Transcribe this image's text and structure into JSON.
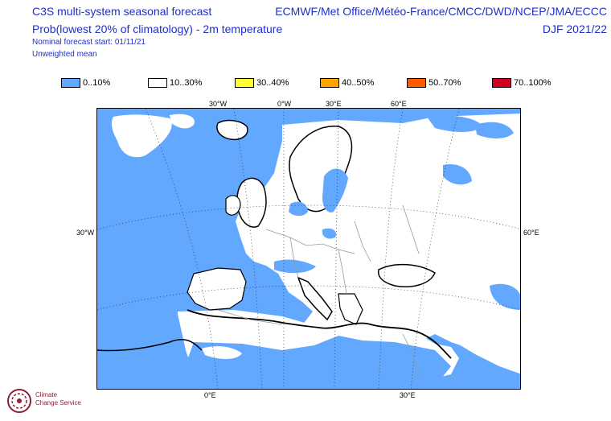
{
  "header": {
    "title": "C3S multi-system seasonal forecast",
    "subtitle": "Prob(lowest 20% of climatology) - 2m temperature",
    "start": "Nominal forecast start: 01/11/21",
    "mean": "Unweighted mean",
    "centres": "ECMWF/Met Office/Météo-France/CMCC/DWD/NCEP/JMA/ECCC",
    "season": "DJF 2021/22"
  },
  "legend": [
    {
      "label": "0..10%",
      "color": "#62a8ff"
    },
    {
      "label": "10..30%",
      "color": "#ffffff"
    },
    {
      "label": "30..40%",
      "color": "#ffff33"
    },
    {
      "label": "40..50%",
      "color": "#ffa500"
    },
    {
      "label": "50..70%",
      "color": "#ff5a00"
    },
    {
      "label": "70..100%",
      "color": "#d00020"
    }
  ],
  "map": {
    "top_labels": [
      "30°W",
      "0°W",
      "30°E",
      "60°E"
    ],
    "left_label": "30°W",
    "right_label": "60°E",
    "bottom_labels": [
      "0°E",
      "30°E"
    ],
    "ocean_color": "#62a8ff",
    "land_color": "#ffffff"
  },
  "logo": {
    "line1": "Climate",
    "line2": "Change Service"
  }
}
